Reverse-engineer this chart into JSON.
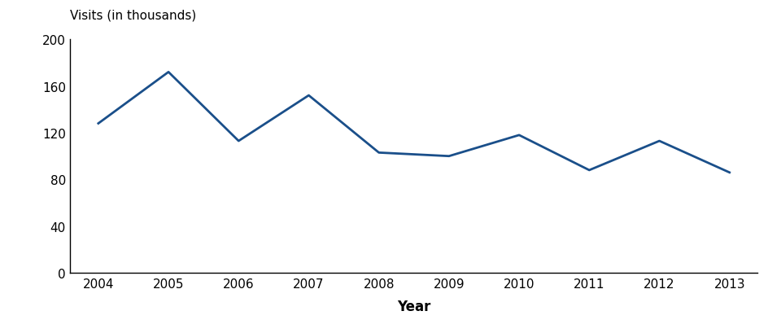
{
  "years": [
    2004,
    2005,
    2006,
    2007,
    2008,
    2009,
    2010,
    2011,
    2012,
    2013
  ],
  "values": [
    128,
    172,
    113,
    152,
    103,
    100,
    118,
    88,
    113,
    86
  ],
  "line_color": "#1a4f8a",
  "line_width": 2.0,
  "ylabel": "Visits (in thousands)",
  "xlabel": "Year",
  "ylim": [
    0,
    200
  ],
  "yticks": [
    0,
    40,
    80,
    120,
    160,
    200
  ],
  "background_color": "#ffffff",
  "ylabel_fontsize": 11,
  "xlabel_fontsize": 12,
  "tick_fontsize": 11
}
